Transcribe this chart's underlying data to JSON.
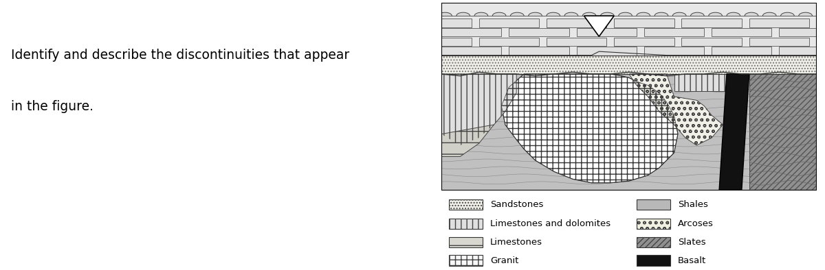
{
  "question_text_line1": "Identify and describe the discontinuities that appear",
  "question_text_line2": "in the figure.",
  "legend_left": [
    {
      "label": "Sandstones",
      "hatch": "....",
      "fc": "#f0f0e8",
      "ec": "#555555"
    },
    {
      "label": "Limestones and dolomites",
      "hatch": "||",
      "fc": "#e8e8e8",
      "ec": "#555555"
    },
    {
      "label": "Limestones",
      "hatch": "-",
      "fc": "#e0e0d8",
      "ec": "#555555"
    },
    {
      "label": "Granit",
      "hatch": "++",
      "fc": "#f8f8f8",
      "ec": "#555555"
    }
  ],
  "legend_right": [
    {
      "label": "Shales",
      "hatch": "",
      "fc": "#b8b8b8",
      "ec": "#555555"
    },
    {
      "label": "Arcoses",
      "hatch": "oo",
      "fc": "#f8f8f0",
      "ec": "#555555"
    },
    {
      "label": "Slates",
      "hatch": "////",
      "fc": "#909090",
      "ec": "#555555"
    },
    {
      "label": "Basalt",
      "hatch": "",
      "fc": "#111111",
      "ec": "#111111"
    }
  ],
  "bg_color": "white",
  "text_fontsize": 13.5,
  "legend_fontsize": 9.5
}
